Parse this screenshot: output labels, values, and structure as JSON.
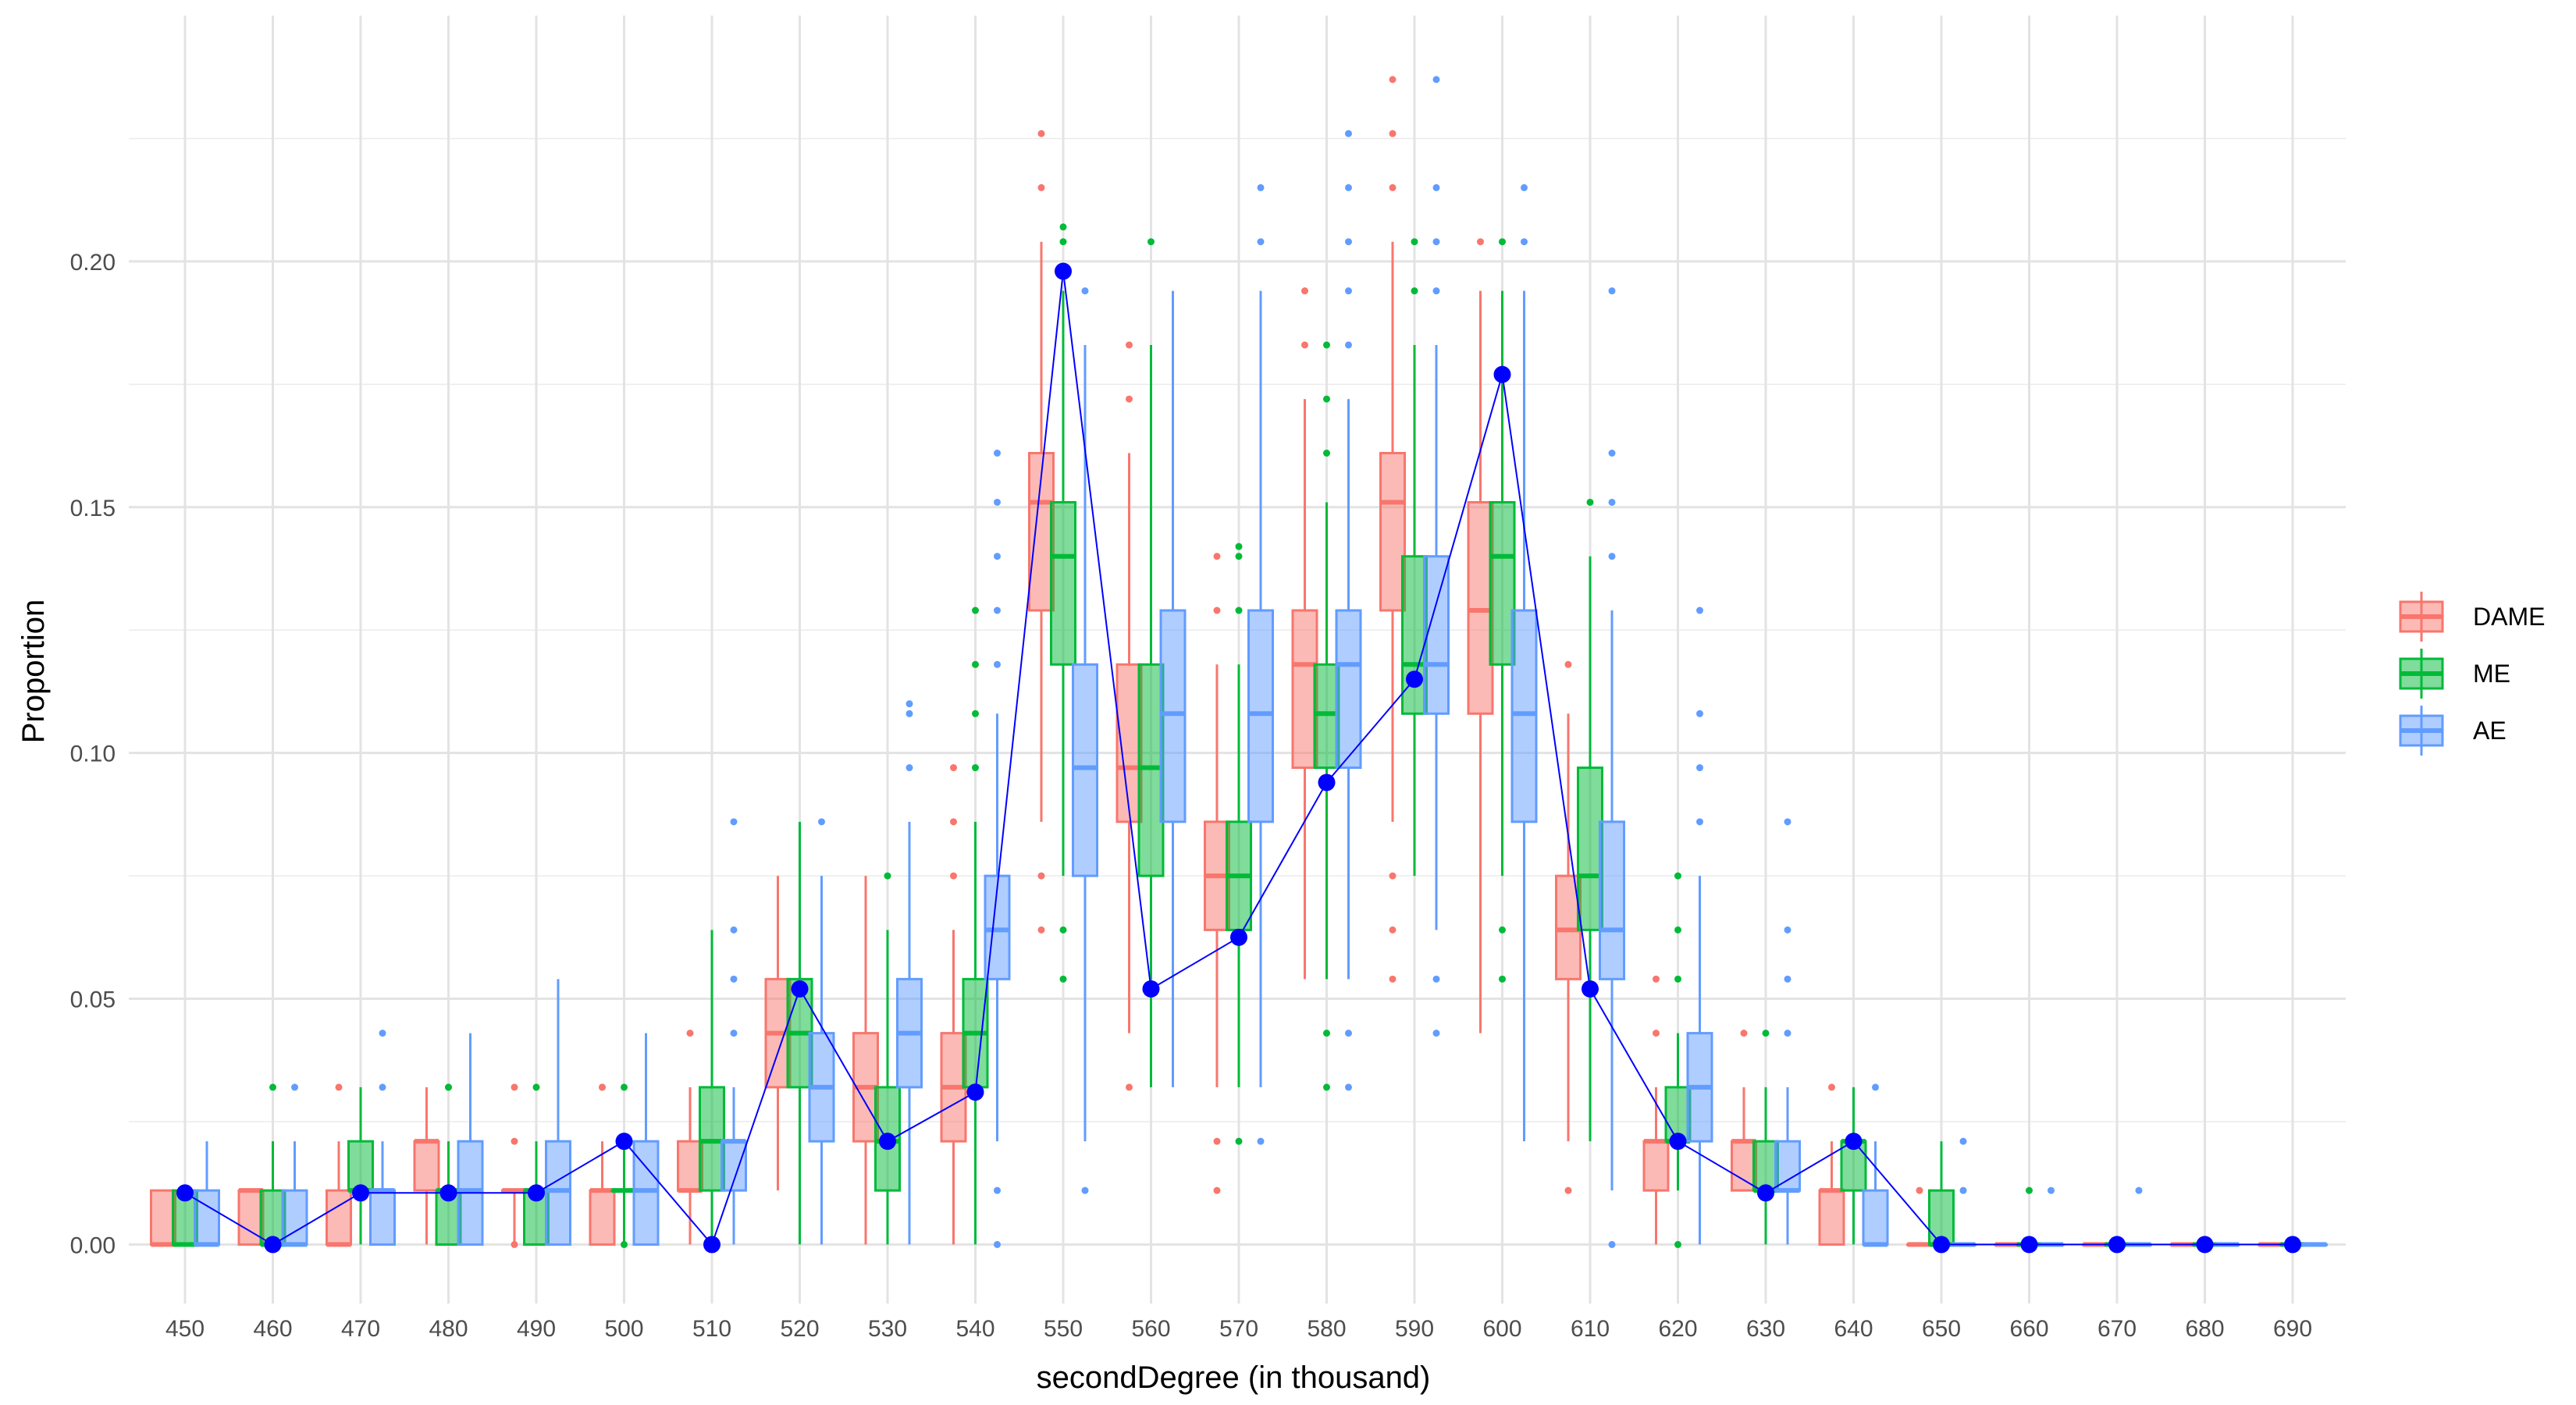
{
  "chart_data": {
    "type": "boxplot",
    "xlabel": "secondDegree (in thousand)",
    "ylabel": "Proportion",
    "ylim": [
      -0.012,
      0.25
    ],
    "yticks": [
      0.0,
      0.05,
      0.1,
      0.15,
      0.2
    ],
    "ytick_labels": [
      "0.00",
      "0.05",
      "0.10",
      "0.15",
      "0.20"
    ],
    "categories": [
      "450",
      "460",
      "470",
      "480",
      "490",
      "500",
      "510",
      "520",
      "530",
      "540",
      "550",
      "560",
      "570",
      "580",
      "590",
      "600",
      "610",
      "620",
      "630",
      "640",
      "650",
      "660",
      "670",
      "680",
      "690"
    ],
    "grid": true,
    "legend_position": "right",
    "series": [
      {
        "name": "DAME",
        "color": "#F8766D",
        "boxes": [
          {
            "lw": 0,
            "q1": 0,
            "med": 0,
            "q3": 0.011,
            "uw": 0.011,
            "out": []
          },
          {
            "lw": 0,
            "q1": 0,
            "med": 0.011,
            "q3": 0.011,
            "uw": 0.011,
            "out": []
          },
          {
            "lw": 0,
            "q1": 0,
            "med": 0,
            "q3": 0.011,
            "uw": 0.021,
            "out": [
              0.032
            ]
          },
          {
            "lw": 0,
            "q1": 0.011,
            "med": 0.021,
            "q3": 0.021,
            "uw": 0.032,
            "out": []
          },
          {
            "lw": 0,
            "q1": 0.011,
            "med": 0.011,
            "q3": 0.011,
            "uw": 0.011,
            "out": [
              0.021,
              0.032,
              0
            ]
          },
          {
            "lw": 0,
            "q1": 0,
            "med": 0.011,
            "q3": 0.011,
            "uw": 0.021,
            "out": [
              0.032,
              0.032
            ]
          },
          {
            "lw": 0,
            "q1": 0.011,
            "med": 0.011,
            "q3": 0.021,
            "uw": 0.032,
            "out": [
              0.043
            ]
          },
          {
            "lw": 0.011,
            "q1": 0.032,
            "med": 0.043,
            "q3": 0.054,
            "uw": 0.075,
            "out": []
          },
          {
            "lw": 0,
            "q1": 0.021,
            "med": 0.032,
            "q3": 0.043,
            "uw": 0.075,
            "out": []
          },
          {
            "lw": 0,
            "q1": 0.021,
            "med": 0.032,
            "q3": 0.043,
            "uw": 0.064,
            "out": [
              0.075,
              0.086,
              0.097
            ]
          },
          {
            "lw": 0.086,
            "q1": 0.129,
            "med": 0.151,
            "q3": 0.161,
            "uw": 0.204,
            "out": [
              0.215,
              0.226,
              0.075,
              0.064
            ]
          },
          {
            "lw": 0.043,
            "q1": 0.086,
            "med": 0.097,
            "q3": 0.118,
            "uw": 0.161,
            "out": [
              0.172,
              0.183,
              0.032
            ]
          },
          {
            "lw": 0.032,
            "q1": 0.064,
            "med": 0.075,
            "q3": 0.086,
            "uw": 0.118,
            "out": [
              0.129,
              0.14,
              0.021,
              0.011
            ]
          },
          {
            "lw": 0.054,
            "q1": 0.097,
            "med": 0.118,
            "q3": 0.129,
            "uw": 0.172,
            "out": [
              0.183,
              0.194
            ]
          },
          {
            "lw": 0.086,
            "q1": 0.129,
            "med": 0.151,
            "q3": 0.161,
            "uw": 0.204,
            "out": [
              0.215,
              0.226,
              0.237,
              0.075,
              0.064,
              0.054
            ]
          },
          {
            "lw": 0.043,
            "q1": 0.108,
            "med": 0.129,
            "q3": 0.151,
            "uw": 0.194,
            "out": [
              0.204
            ]
          },
          {
            "lw": 0.021,
            "q1": 0.054,
            "med": 0.064,
            "q3": 0.075,
            "uw": 0.108,
            "out": [
              0.118,
              0.011
            ]
          },
          {
            "lw": 0,
            "q1": 0.011,
            "med": 0.021,
            "q3": 0.021,
            "uw": 0.032,
            "out": [
              0.043,
              0.054
            ]
          },
          {
            "lw": 0.011,
            "q1": 0.011,
            "med": 0.021,
            "q3": 0.021,
            "uw": 0.032,
            "out": [
              0.043
            ]
          },
          {
            "lw": 0,
            "q1": 0,
            "med": 0.011,
            "q3": 0.011,
            "uw": 0.021,
            "out": [
              0.032
            ]
          },
          {
            "lw": 0,
            "q1": 0,
            "med": 0,
            "q3": 0,
            "uw": 0,
            "out": [
              0.011
            ]
          },
          {
            "lw": 0,
            "q1": 0,
            "med": 0,
            "q3": 0,
            "uw": 0,
            "out": []
          },
          {
            "lw": 0,
            "q1": 0,
            "med": 0,
            "q3": 0,
            "uw": 0,
            "out": []
          },
          {
            "lw": 0,
            "q1": 0,
            "med": 0,
            "q3": 0,
            "uw": 0,
            "out": []
          },
          {
            "lw": 0,
            "q1": 0,
            "med": 0,
            "q3": 0,
            "uw": 0,
            "out": []
          }
        ]
      },
      {
        "name": "ME",
        "color": "#00BA38",
        "boxes": [
          {
            "lw": 0,
            "q1": 0,
            "med": 0,
            "q3": 0.011,
            "uw": 0.011,
            "out": []
          },
          {
            "lw": 0,
            "q1": 0,
            "med": 0,
            "q3": 0.011,
            "uw": 0.021,
            "out": [
              0.032
            ]
          },
          {
            "lw": 0,
            "q1": 0.011,
            "med": 0.011,
            "q3": 0.021,
            "uw": 0.032,
            "out": []
          },
          {
            "lw": 0,
            "q1": 0,
            "med": 0.011,
            "q3": 0.011,
            "uw": 0.021,
            "out": [
              0.032,
              0.032
            ]
          },
          {
            "lw": 0,
            "q1": 0,
            "med": 0.011,
            "q3": 0.011,
            "uw": 0.021,
            "out": [
              0.032
            ]
          },
          {
            "lw": 0,
            "q1": 0.011,
            "med": 0.011,
            "q3": 0.011,
            "uw": 0.021,
            "out": [
              0.032,
              0
            ]
          },
          {
            "lw": 0,
            "q1": 0.011,
            "med": 0.021,
            "q3": 0.032,
            "uw": 0.064,
            "out": []
          },
          {
            "lw": 0,
            "q1": 0.032,
            "med": 0.043,
            "q3": 0.054,
            "uw": 0.086,
            "out": []
          },
          {
            "lw": 0,
            "q1": 0.011,
            "med": 0.021,
            "q3": 0.032,
            "uw": 0.064,
            "out": [
              0.075
            ]
          },
          {
            "lw": 0,
            "q1": 0.032,
            "med": 0.043,
            "q3": 0.054,
            "uw": 0.086,
            "out": [
              0.097,
              0.108,
              0.118,
              0.129
            ]
          },
          {
            "lw": 0.075,
            "q1": 0.118,
            "med": 0.14,
            "q3": 0.151,
            "uw": 0.194,
            "out": [
              0.204,
              0.207,
              0.064,
              0.054
            ]
          },
          {
            "lw": 0.032,
            "q1": 0.075,
            "med": 0.097,
            "q3": 0.118,
            "uw": 0.183,
            "out": [
              0.204
            ]
          },
          {
            "lw": 0.032,
            "q1": 0.064,
            "med": 0.075,
            "q3": 0.086,
            "uw": 0.118,
            "out": [
              0.129,
              0.14,
              0.142,
              0.021
            ]
          },
          {
            "lw": 0.054,
            "q1": 0.097,
            "med": 0.108,
            "q3": 0.118,
            "uw": 0.151,
            "out": [
              0.161,
              0.172,
              0.183,
              0.043,
              0.032
            ]
          },
          {
            "lw": 0.075,
            "q1": 0.108,
            "med": 0.118,
            "q3": 0.14,
            "uw": 0.183,
            "out": [
              0.194,
              0.204
            ]
          },
          {
            "lw": 0.075,
            "q1": 0.118,
            "med": 0.14,
            "q3": 0.151,
            "uw": 0.194,
            "out": [
              0.204,
              0.064,
              0.054
            ]
          },
          {
            "lw": 0.021,
            "q1": 0.064,
            "med": 0.075,
            "q3": 0.097,
            "uw": 0.14,
            "out": [
              0.151
            ]
          },
          {
            "lw": 0.011,
            "q1": 0.021,
            "med": 0.021,
            "q3": 0.032,
            "uw": 0.043,
            "out": [
              0.054,
              0.064,
              0.075,
              0
            ]
          },
          {
            "lw": 0,
            "q1": 0.011,
            "med": 0.011,
            "q3": 0.021,
            "uw": 0.032,
            "out": [
              0.043
            ]
          },
          {
            "lw": 0,
            "q1": 0.011,
            "med": 0.021,
            "q3": 0.021,
            "uw": 0.032,
            "out": []
          },
          {
            "lw": 0,
            "q1": 0,
            "med": 0,
            "q3": 0.011,
            "uw": 0.021,
            "out": []
          },
          {
            "lw": 0,
            "q1": 0,
            "med": 0,
            "q3": 0,
            "uw": 0,
            "out": [
              0.011
            ]
          },
          {
            "lw": 0,
            "q1": 0,
            "med": 0,
            "q3": 0,
            "uw": 0,
            "out": []
          },
          {
            "lw": 0,
            "q1": 0,
            "med": 0,
            "q3": 0,
            "uw": 0,
            "out": []
          },
          {
            "lw": 0,
            "q1": 0,
            "med": 0,
            "q3": 0,
            "uw": 0,
            "out": []
          }
        ]
      },
      {
        "name": "AE",
        "color": "#619CFF",
        "boxes": [
          {
            "lw": 0,
            "q1": 0,
            "med": 0,
            "q3": 0.011,
            "uw": 0.021,
            "out": []
          },
          {
            "lw": 0,
            "q1": 0,
            "med": 0,
            "q3": 0.011,
            "uw": 0.021,
            "out": [
              0.032
            ]
          },
          {
            "lw": 0,
            "q1": 0,
            "med": 0.011,
            "q3": 0.011,
            "uw": 0.021,
            "out": [
              0.032,
              0.043
            ]
          },
          {
            "lw": 0,
            "q1": 0,
            "med": 0.011,
            "q3": 0.021,
            "uw": 0.043,
            "out": []
          },
          {
            "lw": 0,
            "q1": 0,
            "med": 0.011,
            "q3": 0.021,
            "uw": 0.054,
            "out": []
          },
          {
            "lw": 0,
            "q1": 0,
            "med": 0.011,
            "q3": 0.021,
            "uw": 0.043,
            "out": []
          },
          {
            "lw": 0,
            "q1": 0.011,
            "med": 0.021,
            "q3": 0.021,
            "uw": 0.032,
            "out": [
              0.043,
              0.054,
              0.064,
              0.086
            ]
          },
          {
            "lw": 0,
            "q1": 0.021,
            "med": 0.032,
            "q3": 0.043,
            "uw": 0.075,
            "out": [
              0.086
            ]
          },
          {
            "lw": 0,
            "q1": 0.032,
            "med": 0.043,
            "q3": 0.054,
            "uw": 0.086,
            "out": [
              0.097,
              0.108,
              0.11
            ]
          },
          {
            "lw": 0.021,
            "q1": 0.054,
            "med": 0.064,
            "q3": 0.075,
            "uw": 0.108,
            "out": [
              0.118,
              0.129,
              0.14,
              0.151,
              0.161,
              0.011,
              0
            ]
          },
          {
            "lw": 0.021,
            "q1": 0.075,
            "med": 0.097,
            "q3": 0.118,
            "uw": 0.183,
            "out": [
              0.194,
              0.011
            ]
          },
          {
            "lw": 0.032,
            "q1": 0.086,
            "med": 0.108,
            "q3": 0.129,
            "uw": 0.194,
            "out": []
          },
          {
            "lw": 0.032,
            "q1": 0.086,
            "med": 0.108,
            "q3": 0.129,
            "uw": 0.194,
            "out": [
              0.204,
              0.215,
              0.021
            ]
          },
          {
            "lw": 0.054,
            "q1": 0.097,
            "med": 0.118,
            "q3": 0.129,
            "uw": 0.172,
            "out": [
              0.183,
              0.194,
              0.204,
              0.215,
              0.226,
              0.043,
              0.032
            ]
          },
          {
            "lw": 0.064,
            "q1": 0.108,
            "med": 0.118,
            "q3": 0.14,
            "uw": 0.183,
            "out": [
              0.194,
              0.204,
              0.215,
              0.237,
              0.054,
              0.043
            ]
          },
          {
            "lw": 0.021,
            "q1": 0.086,
            "med": 0.108,
            "q3": 0.129,
            "uw": 0.194,
            "out": [
              0.204,
              0.215
            ]
          },
          {
            "lw": 0.011,
            "q1": 0.054,
            "med": 0.064,
            "q3": 0.086,
            "uw": 0.129,
            "out": [
              0.14,
              0.151,
              0.161,
              0.194,
              0
            ]
          },
          {
            "lw": 0,
            "q1": 0.021,
            "med": 0.032,
            "q3": 0.043,
            "uw": 0.075,
            "out": [
              0.086,
              0.097,
              0.108,
              0.129
            ]
          },
          {
            "lw": 0,
            "q1": 0.011,
            "med": 0.011,
            "q3": 0.021,
            "uw": 0.032,
            "out": [
              0.043,
              0.054,
              0.064,
              0.086
            ]
          },
          {
            "lw": 0,
            "q1": 0,
            "med": 0,
            "q3": 0.011,
            "uw": 0.021,
            "out": [
              0.032
            ]
          },
          {
            "lw": 0,
            "q1": 0,
            "med": 0,
            "q3": 0,
            "uw": 0,
            "out": [
              0.011,
              0.021
            ]
          },
          {
            "lw": 0,
            "q1": 0,
            "med": 0,
            "q3": 0,
            "uw": 0,
            "out": [
              0.011
            ]
          },
          {
            "lw": 0,
            "q1": 0,
            "med": 0,
            "q3": 0,
            "uw": 0,
            "out": [
              0.011
            ]
          },
          {
            "lw": 0,
            "q1": 0,
            "med": 0,
            "q3": 0,
            "uw": 0,
            "out": []
          },
          {
            "lw": 0,
            "q1": 0,
            "med": 0,
            "q3": 0,
            "uw": 0,
            "out": []
          }
        ]
      }
    ],
    "line": {
      "color": "#0000FF",
      "values": [
        0.0105,
        0,
        0.0105,
        0.0105,
        0.0105,
        0.021,
        0,
        0.052,
        0.021,
        0.031,
        0.198,
        0.052,
        0.0625,
        0.094,
        0.115,
        0.177,
        0.052,
        0.021,
        0.0105,
        0.021,
        0,
        0,
        0,
        0,
        0
      ]
    }
  }
}
